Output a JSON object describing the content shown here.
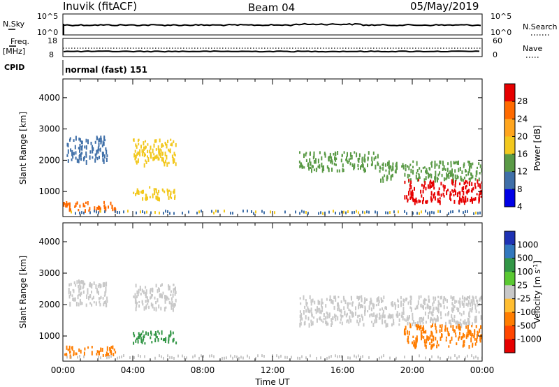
{
  "header": {
    "station": "Inuvik  (fitACF)",
    "beam": "Beam 04",
    "date": "05/May/2019"
  },
  "status_panels": {
    "nsky_label": "N.Sky",
    "nsky_ticks": [
      "10^5",
      "10^0"
    ],
    "nsearch_label": "N.Search",
    "nsearch_ticks": [
      "10^5",
      "10^0"
    ],
    "freq_label": "Freq.",
    "freq_unit": "[MHz]",
    "freq_ticks": [
      "18",
      "8"
    ],
    "nave_label": "Nave",
    "nave_ticks": [
      "60",
      "0"
    ],
    "cpid_label": "CPID",
    "cpid_value": "normal (fast) 151"
  },
  "chart_data": [
    {
      "type": "heatmap",
      "name": "power",
      "ylabel": "Slant Range [km]",
      "xlabel": "",
      "yticks": [
        "1000",
        "2000",
        "3000",
        "4000"
      ],
      "ylim": [
        200,
        4600
      ],
      "xlim_hours": [
        0,
        24
      ],
      "colorbar_label": "Power [dB]",
      "colorbar_ticks": [
        "28",
        "24",
        "20",
        "16",
        "12",
        "8",
        "4"
      ],
      "colorbar_colors": [
        "#e60000",
        "#ff6a00",
        "#ffa51e",
        "#f2c81e",
        "#5a9a46",
        "#3f6fa8",
        "#0000e6"
      ],
      "echo_regions": [
        {
          "t0": 0.0,
          "t1": 3.0,
          "r0": 400,
          "r1": 700,
          "level": "mid-high"
        },
        {
          "t0": 0.2,
          "t1": 2.5,
          "r0": 2000,
          "r1": 2800,
          "level": "low"
        },
        {
          "t0": 4.0,
          "t1": 6.5,
          "r0": 1900,
          "r1": 2700,
          "level": "mid"
        },
        {
          "t0": 4.0,
          "t1": 6.5,
          "r0": 800,
          "r1": 1200,
          "level": "mid"
        },
        {
          "t0": 13.5,
          "t1": 18.0,
          "r0": 1700,
          "r1": 2300,
          "level": "low-mid"
        },
        {
          "t0": 18.0,
          "t1": 24.0,
          "r0": 1400,
          "r1": 2000,
          "level": "low-mid"
        },
        {
          "t0": 19.5,
          "t1": 24.0,
          "r0": 700,
          "r1": 1400,
          "level": "high"
        }
      ]
    },
    {
      "type": "heatmap",
      "name": "velocity",
      "ylabel": "Slant Range [km]",
      "xlabel": "Time UT",
      "yticks": [
        "1000",
        "2000",
        "3000",
        "4000"
      ],
      "xticks": [
        "00:00",
        "04:00",
        "08:00",
        "12:00",
        "16:00",
        "20:00",
        "00:00"
      ],
      "ylim": [
        200,
        4600
      ],
      "xlim_hours": [
        0,
        24
      ],
      "colorbar_label": "Velocity [m s",
      "colorbar_unit_exponent": "-1",
      "colorbar_unit_close": "]",
      "colorbar_ticks": [
        "1000",
        "500",
        "100",
        "25",
        "-25",
        "-100",
        "-500",
        "-1000"
      ],
      "colorbar_colors": [
        "#1e32b4",
        "#3278be",
        "#329646",
        "#5ac832",
        "#c8c8c8",
        "#ffbe32",
        "#ff7d00",
        "#ff4600",
        "#e60000"
      ],
      "echo_regions": [
        {
          "t0": 0.0,
          "t1": 3.0,
          "r0": 400,
          "r1": 700,
          "level": "negative"
        },
        {
          "t0": 0.2,
          "t1": 2.5,
          "r0": 2000,
          "r1": 2800,
          "level": "near-zero"
        },
        {
          "t0": 4.0,
          "t1": 6.5,
          "r0": 1900,
          "r1": 2700,
          "level": "near-zero"
        },
        {
          "t0": 4.0,
          "t1": 6.5,
          "r0": 800,
          "r1": 1200,
          "level": "positive"
        },
        {
          "t0": 13.5,
          "t1": 24.0,
          "r0": 1400,
          "r1": 2300,
          "level": "near-zero"
        },
        {
          "t0": 19.5,
          "t1": 24.0,
          "r0": 700,
          "r1": 1400,
          "level": "negative"
        }
      ]
    }
  ]
}
